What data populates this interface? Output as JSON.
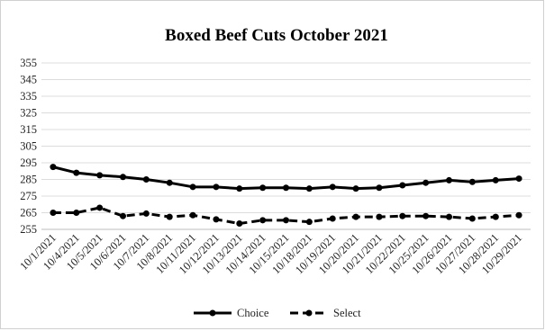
{
  "chart_data": {
    "type": "line",
    "title": "Boxed Beef Cuts October 2021",
    "xlabel": "",
    "ylabel": "",
    "categories": [
      "10/1/2021",
      "10/4/2021",
      "10/5/2021",
      "10/6/2021",
      "10/7/2021",
      "10/8/2021",
      "10/11/2021",
      "10/12/2021",
      "10/13/2021",
      "10/14/2021",
      "10/15/2021",
      "10/18/2021",
      "10/19/2021",
      "10/20/2021",
      "10/21/2021",
      "10/22/2021",
      "10/25/2021",
      "10/26/2021",
      "10/27/2021",
      "10/28/2021",
      "10/29/2021"
    ],
    "yticks": [
      255,
      265,
      275,
      285,
      295,
      305,
      315,
      325,
      335,
      345,
      355
    ],
    "ylim": [
      255,
      355
    ],
    "grid": true,
    "legend_position": "bottom",
    "series": [
      {
        "name": "Choice",
        "line_style": "solid",
        "color": "#000000",
        "values": [
          292.5,
          289.0,
          287.5,
          286.5,
          285.0,
          283.0,
          280.5,
          280.5,
          279.5,
          280.0,
          280.0,
          279.5,
          280.5,
          279.5,
          280.0,
          281.5,
          283.0,
          284.5,
          283.5,
          284.5,
          285.5
        ]
      },
      {
        "name": "Select",
        "line_style": "dashed",
        "color": "#000000",
        "values": [
          265.0,
          265.0,
          268.0,
          263.0,
          264.5,
          262.5,
          263.5,
          261.0,
          258.5,
          260.5,
          260.5,
          259.5,
          261.5,
          262.5,
          262.5,
          263.0,
          263.0,
          262.5,
          261.5,
          262.5,
          263.5
        ]
      }
    ]
  }
}
